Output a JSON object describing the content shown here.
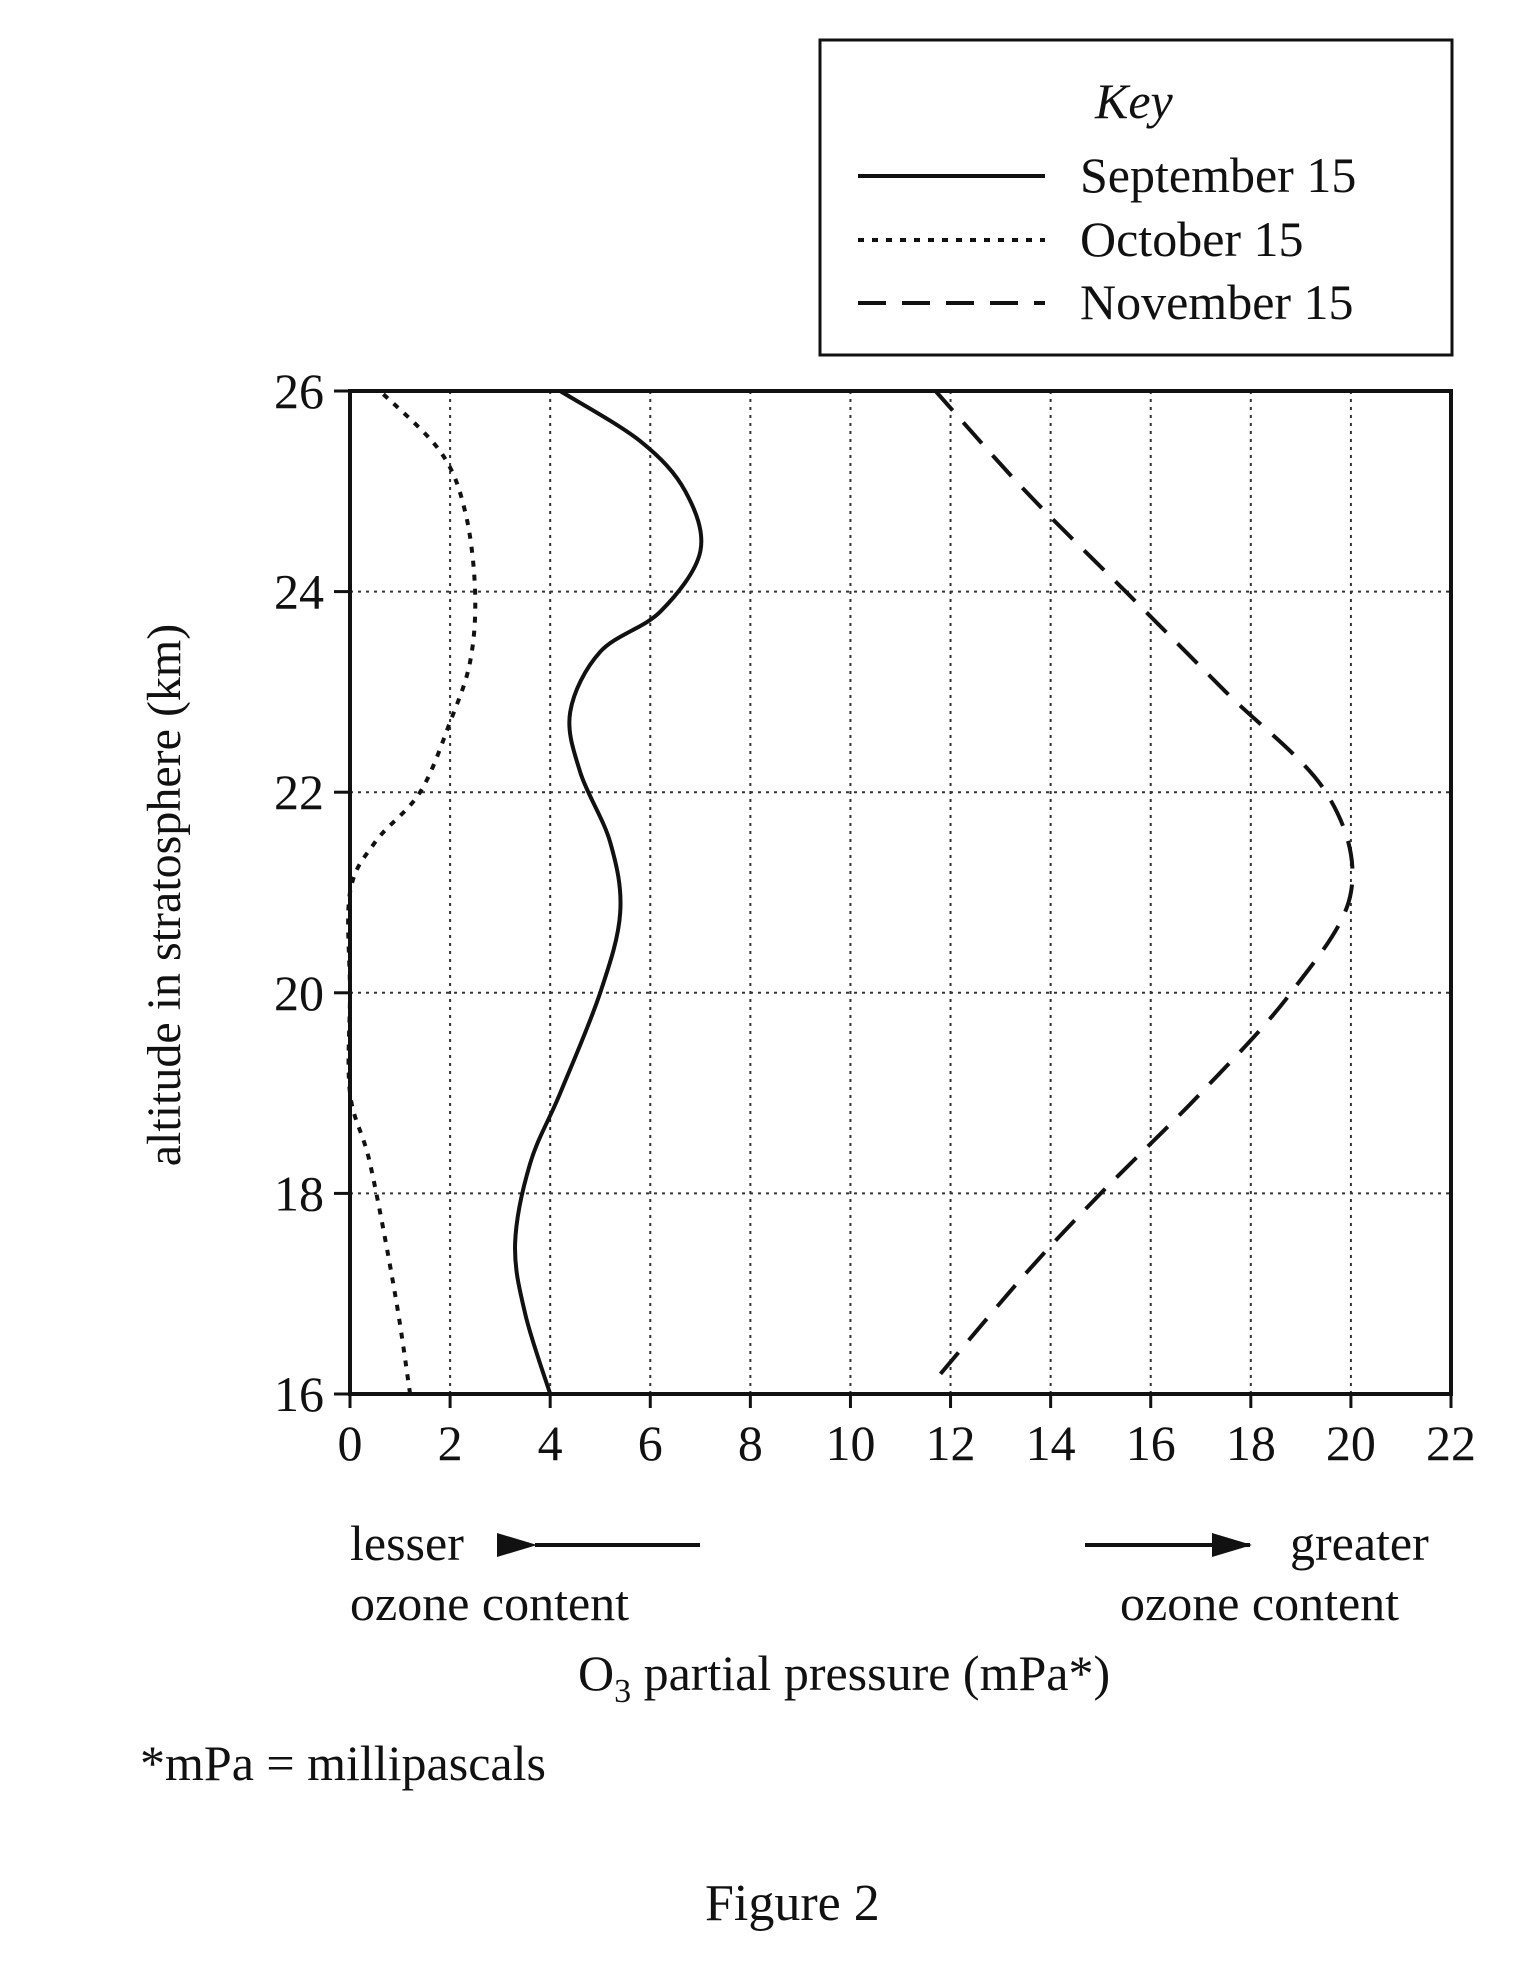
{
  "chart_data": {
    "type": "line",
    "title": "",
    "xlabel_main": "O",
    "xlabel_sub": "3",
    "xlabel_rest": " partial pressure (mPa*)",
    "ylabel": "altitude in stratosphere (km)",
    "xlim": [
      0,
      22
    ],
    "ylim": [
      16,
      26
    ],
    "xticks": [
      "0",
      "2",
      "4",
      "6",
      "8",
      "10",
      "12",
      "14",
      "16",
      "18",
      "20",
      "22"
    ],
    "yticks": [
      "16",
      "18",
      "20",
      "22",
      "24",
      "26"
    ],
    "grid": true,
    "legend": {
      "placement": "top-right",
      "title": "Key",
      "entries": [
        "September 15",
        "October 15",
        "November 15"
      ]
    },
    "annotations": {
      "left_line1": "lesser",
      "left_line2": "ozone content",
      "right_line1": "greater",
      "right_line2": "ozone content"
    },
    "series": [
      {
        "name": "September 15",
        "style": "solid",
        "points": [
          [
            4.0,
            16.0
          ],
          [
            3.5,
            16.8
          ],
          [
            3.3,
            17.5
          ],
          [
            3.6,
            18.3
          ],
          [
            4.2,
            19.0
          ],
          [
            5.0,
            20.0
          ],
          [
            5.4,
            20.8
          ],
          [
            5.2,
            21.5
          ],
          [
            4.6,
            22.2
          ],
          [
            4.4,
            22.8
          ],
          [
            5.0,
            23.4
          ],
          [
            6.2,
            23.8
          ],
          [
            7.0,
            24.4
          ],
          [
            6.7,
            25.0
          ],
          [
            5.8,
            25.5
          ],
          [
            4.2,
            26.0
          ]
        ]
      },
      {
        "name": "October 15",
        "style": "dotted",
        "points": [
          [
            1.2,
            16.0
          ],
          [
            0.9,
            17.0
          ],
          [
            0.4,
            18.3
          ],
          [
            0.0,
            19.0
          ],
          [
            0.0,
            20.0
          ],
          [
            0.0,
            21.0
          ],
          [
            0.5,
            21.5
          ],
          [
            1.4,
            22.0
          ],
          [
            2.0,
            22.7
          ],
          [
            2.4,
            23.3
          ],
          [
            2.5,
            24.0
          ],
          [
            2.3,
            24.8
          ],
          [
            1.8,
            25.4
          ],
          [
            0.6,
            26.0
          ]
        ]
      },
      {
        "name": "November 15",
        "style": "dashed",
        "points": [
          [
            11.8,
            16.2
          ],
          [
            13.5,
            17.2
          ],
          [
            15.0,
            18.0
          ],
          [
            17.0,
            19.0
          ],
          [
            18.8,
            20.0
          ],
          [
            20.0,
            21.0
          ],
          [
            19.5,
            22.0
          ],
          [
            17.5,
            23.0
          ],
          [
            15.5,
            24.0
          ],
          [
            13.5,
            25.0
          ],
          [
            11.7,
            26.0
          ]
        ]
      }
    ]
  },
  "footnote": "*mPa = millipascals",
  "caption": "Figure 2"
}
